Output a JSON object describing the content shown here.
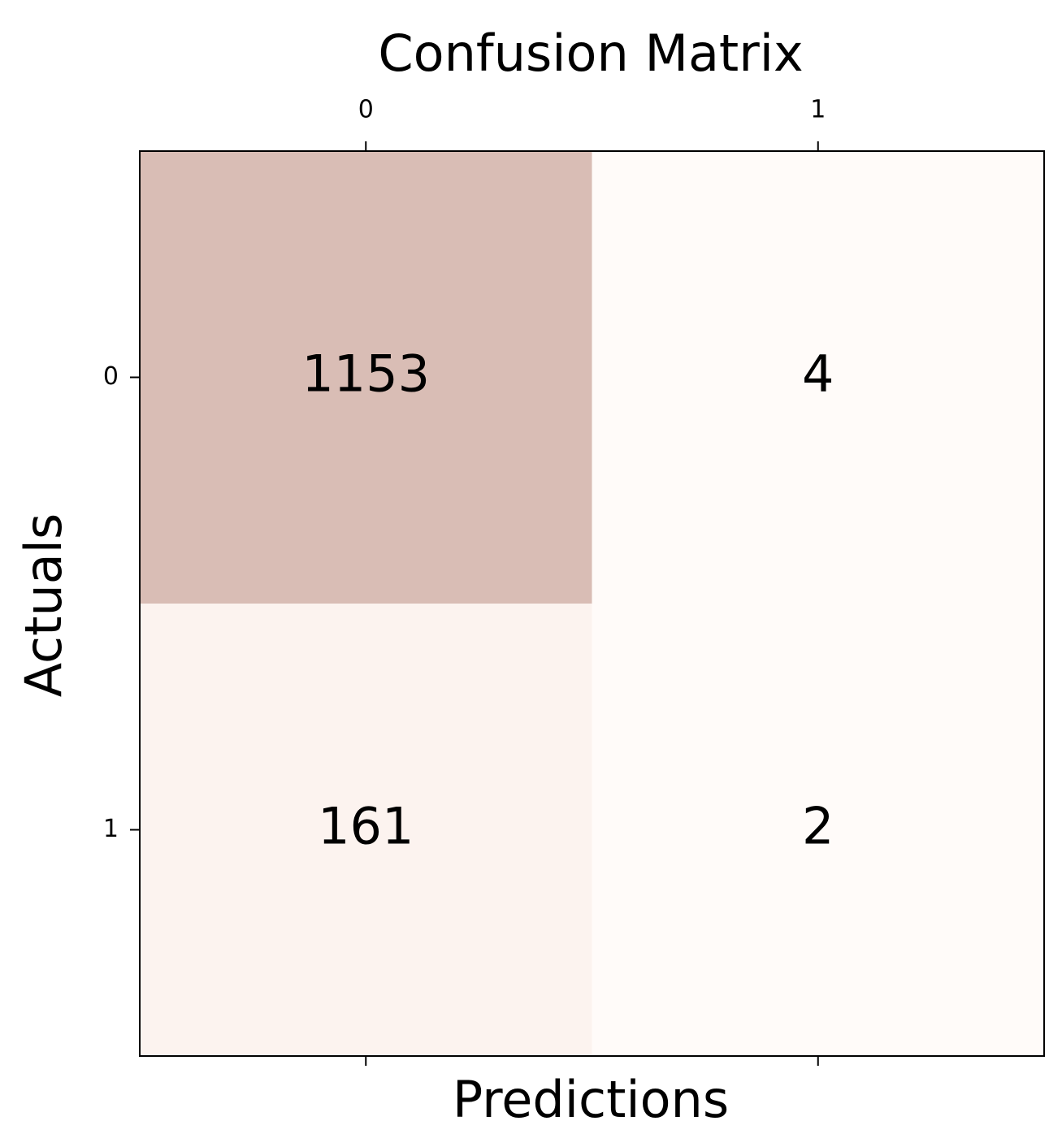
{
  "chart_data": {
    "type": "heatmap",
    "title": "Confusion Matrix",
    "x_label": "Predictions",
    "y_label": "Actuals",
    "x_categories": [
      "0",
      "1"
    ],
    "y_categories": [
      "0",
      "1"
    ],
    "values": [
      [
        1153,
        4
      ],
      [
        161,
        2
      ]
    ],
    "colors": [
      [
        "#d9bdb5",
        "#fffbf9"
      ],
      [
        "#fcf3ef",
        "#fffbf9"
      ]
    ],
    "x_tick_position": "top"
  }
}
